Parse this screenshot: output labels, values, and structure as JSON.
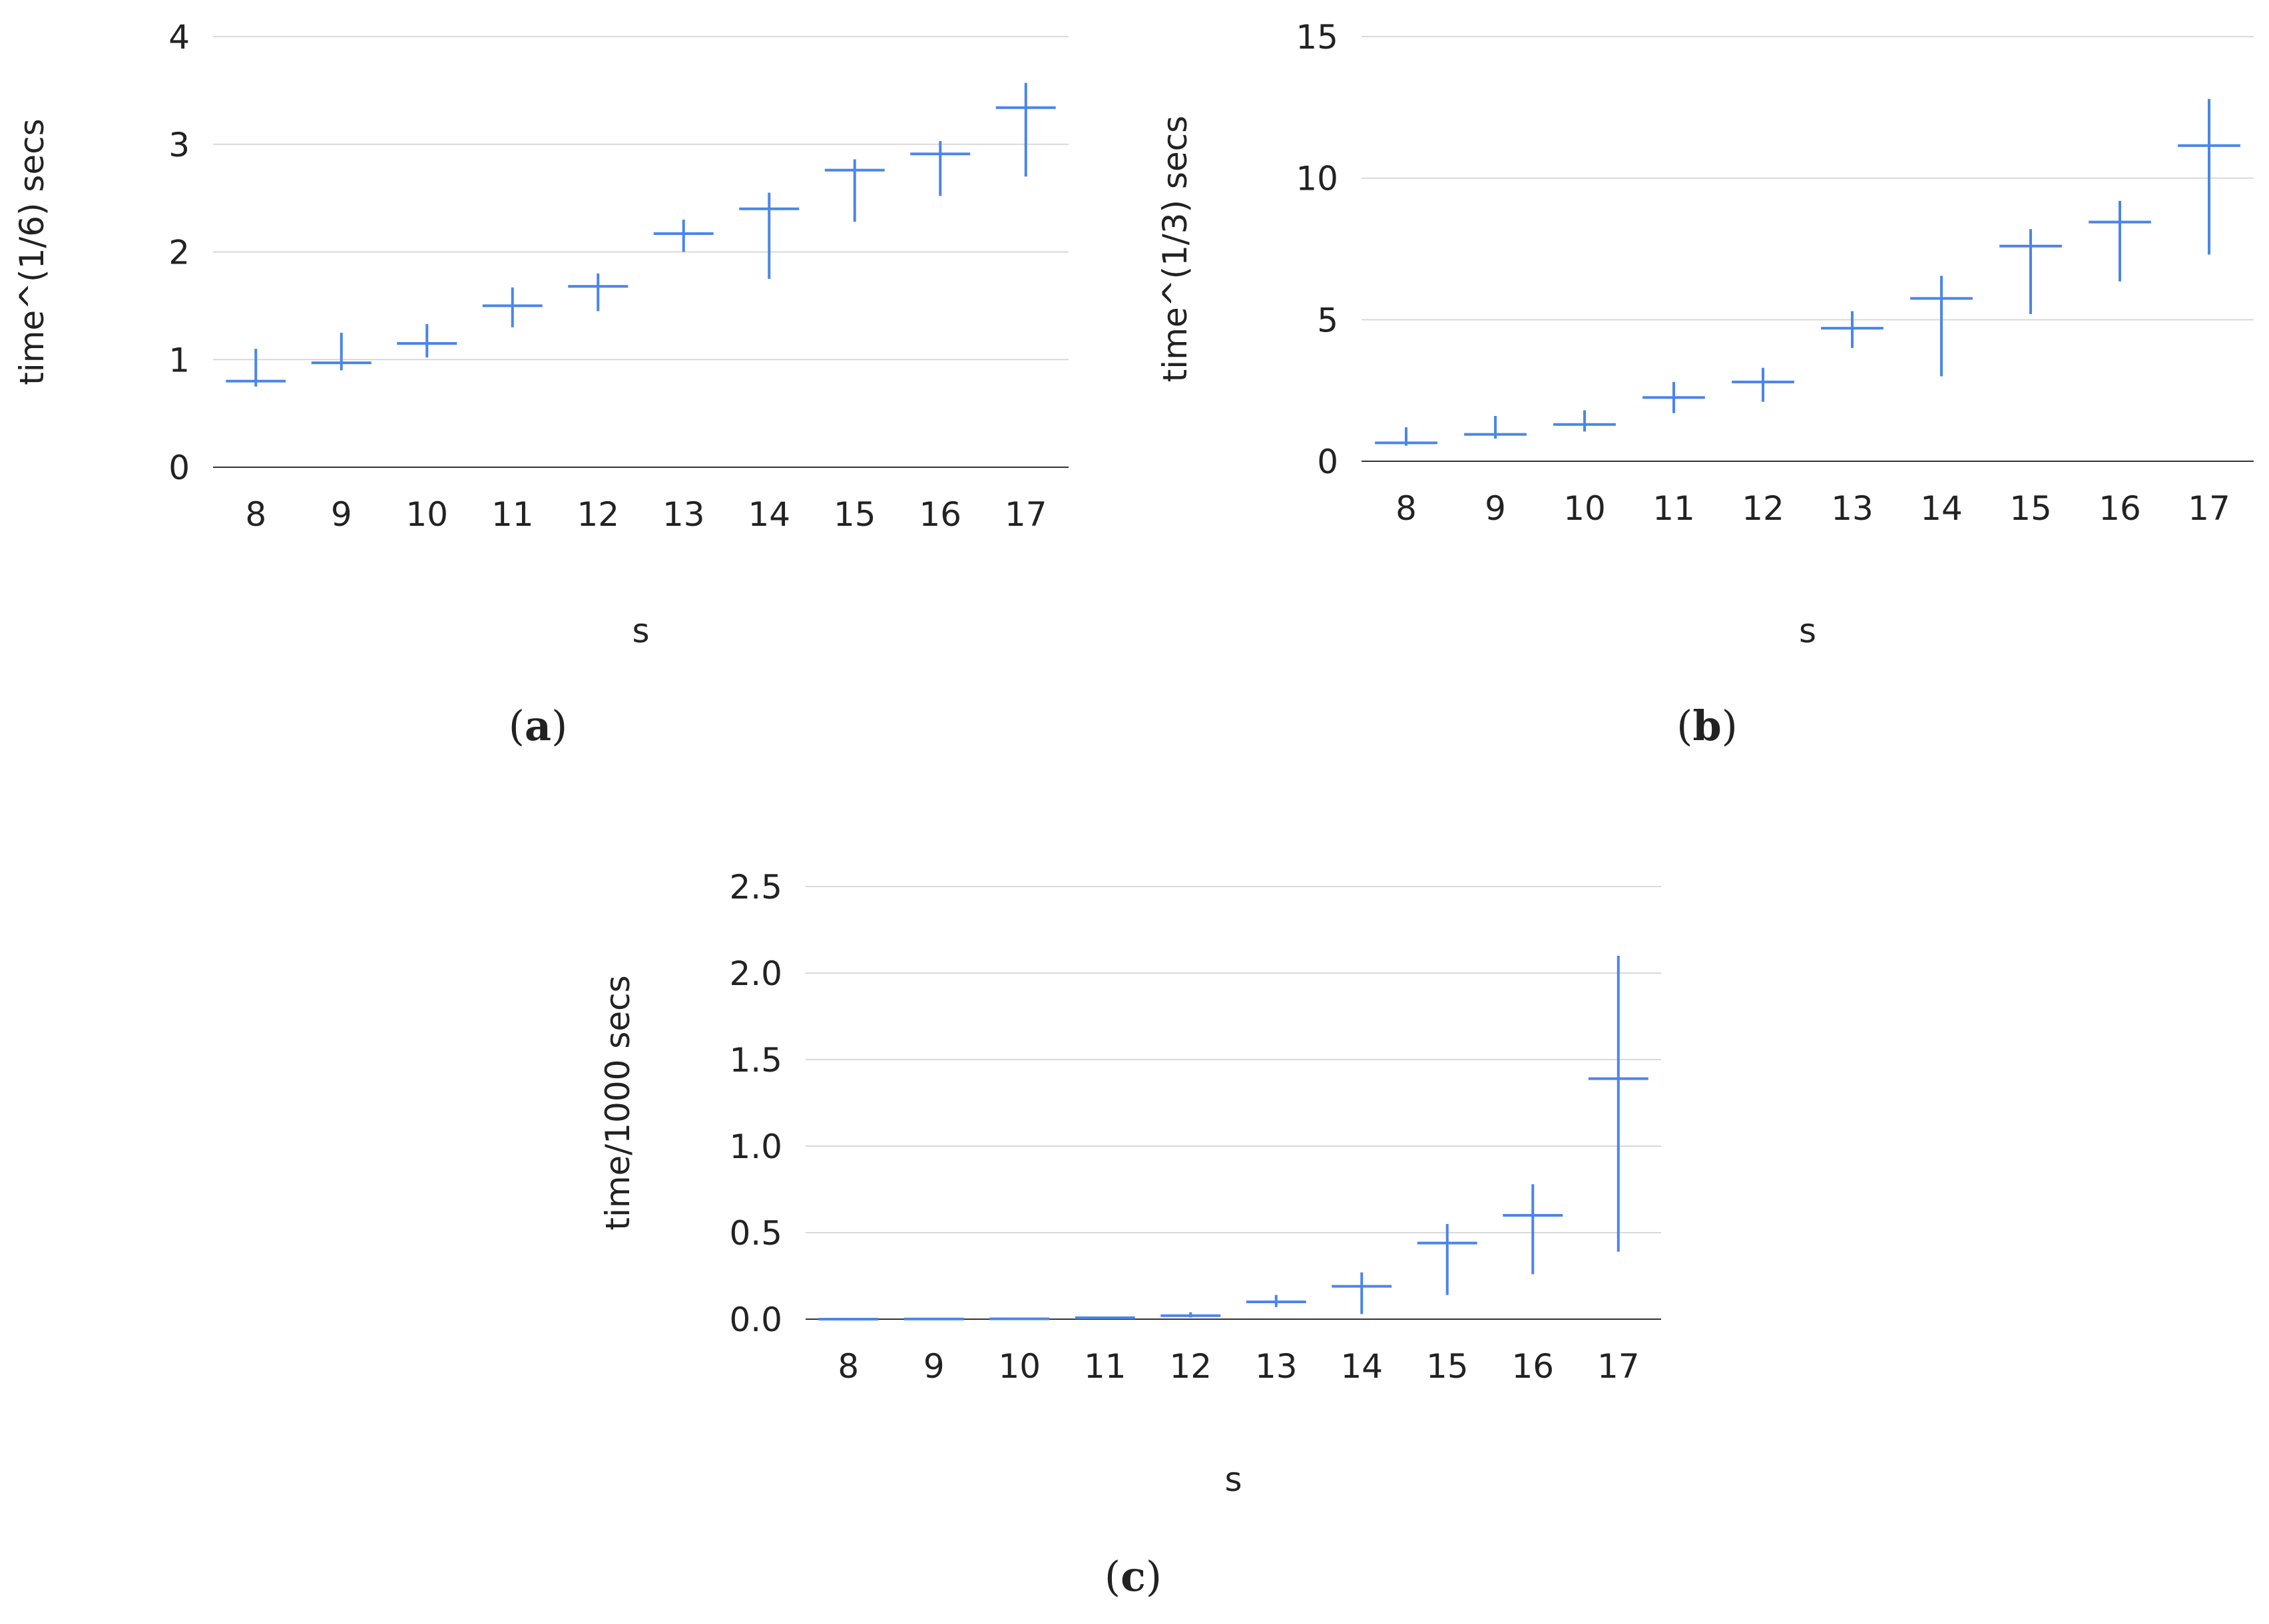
{
  "colors": {
    "series": "#4a86e8",
    "grid": "#d9d9d9",
    "axis": "#333333",
    "text": "#222222"
  },
  "chart_data": [
    {
      "id": "a",
      "caption_letter": "a",
      "type": "candlestick-range",
      "title": "",
      "xlabel": "s",
      "ylabel": "time^(1/6) secs",
      "ylim": [
        0,
        4
      ],
      "yticks": [
        "0",
        "1",
        "2",
        "3",
        "4"
      ],
      "categories": [
        "8",
        "9",
        "10",
        "11",
        "12",
        "13",
        "14",
        "15",
        "16",
        "17"
      ],
      "series": [
        {
          "name": "time",
          "values": [
            0.8,
            0.97,
            1.15,
            1.5,
            1.68,
            2.17,
            2.4,
            2.76,
            2.91,
            3.34
          ],
          "lows": [
            0.75,
            0.9,
            1.02,
            1.3,
            1.45,
            2.0,
            1.75,
            2.28,
            2.52,
            2.7
          ],
          "highs": [
            1.1,
            1.25,
            1.33,
            1.67,
            1.8,
            2.3,
            2.55,
            2.86,
            3.03,
            3.57
          ]
        }
      ]
    },
    {
      "id": "b",
      "caption_letter": "b",
      "type": "candlestick-range",
      "title": "",
      "xlabel": "s",
      "ylabel": "time^(1/3) secs",
      "ylim": [
        0,
        15
      ],
      "yticks": [
        "0",
        "5",
        "10",
        "15"
      ],
      "categories": [
        "8",
        "9",
        "10",
        "11",
        "12",
        "13",
        "14",
        "15",
        "16",
        "17"
      ],
      "series": [
        {
          "name": "time",
          "values": [
            0.65,
            0.95,
            1.3,
            2.25,
            2.8,
            4.7,
            5.75,
            7.6,
            8.45,
            11.15
          ],
          "lows": [
            0.55,
            0.8,
            1.05,
            1.7,
            2.1,
            4.0,
            3.0,
            5.2,
            6.35,
            7.3
          ],
          "highs": [
            1.2,
            1.6,
            1.8,
            2.8,
            3.3,
            5.3,
            6.55,
            8.2,
            9.2,
            12.8
          ]
        }
      ]
    },
    {
      "id": "c",
      "caption_letter": "c",
      "type": "candlestick-range",
      "title": "",
      "xlabel": "s",
      "ylabel": "time/1000 secs",
      "ylim": [
        0,
        2.5
      ],
      "yticks": [
        "0.0",
        "0.5",
        "1.0",
        "1.5",
        "2.0",
        "2.5"
      ],
      "categories": [
        "8",
        "9",
        "10",
        "11",
        "12",
        "13",
        "14",
        "15",
        "16",
        "17"
      ],
      "series": [
        {
          "name": "time",
          "values": [
            0.0,
            0.001,
            0.002,
            0.008,
            0.02,
            0.1,
            0.19,
            0.44,
            0.6,
            1.39
          ],
          "lows": [
            0.0,
            0.0,
            0.001,
            0.005,
            0.01,
            0.07,
            0.03,
            0.14,
            0.26,
            0.39
          ],
          "highs": [
            0.001,
            0.002,
            0.004,
            0.013,
            0.04,
            0.14,
            0.27,
            0.55,
            0.78,
            2.1
          ]
        }
      ]
    }
  ]
}
